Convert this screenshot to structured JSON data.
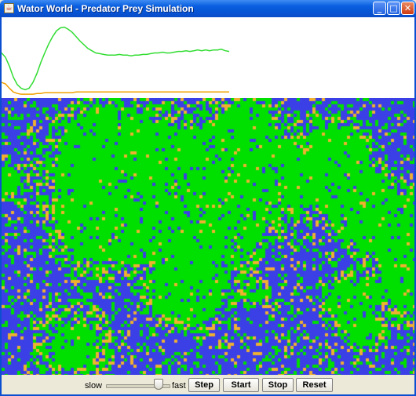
{
  "window": {
    "title": "Wator World - Predator Prey Simulation",
    "controls": {
      "minimize": "_",
      "maximize": "□",
      "close": "✕"
    }
  },
  "colors": {
    "water": "#3b3fe6",
    "fish": "#00e000",
    "shark": "#f0b030",
    "fish_line": "#33dd33",
    "shark_line": "#f0a000",
    "titlebar": "#0754d6"
  },
  "graph": {
    "series": [
      {
        "color_key": "fish",
        "values": [
          0.58,
          0.52,
          0.4,
          0.25,
          0.15,
          0.1,
          0.08,
          0.1,
          0.18,
          0.3,
          0.45,
          0.58,
          0.7,
          0.8,
          0.88,
          0.92,
          0.93,
          0.9,
          0.86,
          0.8,
          0.74,
          0.69,
          0.64,
          0.61,
          0.58,
          0.57,
          0.56,
          0.55,
          0.55,
          0.55,
          0.56,
          0.55,
          0.55,
          0.54,
          0.55,
          0.55,
          0.56,
          0.56,
          0.57,
          0.58,
          0.58,
          0.59,
          0.58,
          0.58,
          0.59,
          0.6,
          0.6,
          0.61,
          0.6,
          0.61,
          0.62,
          0.61,
          0.62,
          0.61,
          0.62,
          0.62,
          0.63,
          0.61,
          0.6
        ]
      },
      {
        "color_key": "shark",
        "values": [
          0.18,
          0.16,
          0.1,
          0.05,
          0.03,
          0.02,
          0.02,
          0.02,
          0.02,
          0.03,
          0.03,
          0.04,
          0.04,
          0.04,
          0.04,
          0.04,
          0.04,
          0.04,
          0.04,
          0.05,
          0.05,
          0.05,
          0.05,
          0.05,
          0.05,
          0.05,
          0.05,
          0.05,
          0.05,
          0.05,
          0.05,
          0.05,
          0.05,
          0.05,
          0.05,
          0.05,
          0.05,
          0.05,
          0.05,
          0.05,
          0.05,
          0.05,
          0.05,
          0.05,
          0.05,
          0.05,
          0.05,
          0.05,
          0.05,
          0.05,
          0.05,
          0.05,
          0.05,
          0.05,
          0.05,
          0.05,
          0.05,
          0.05,
          0.05
        ]
      }
    ]
  },
  "controls": {
    "speed_label_slow": "slow",
    "speed_label_fast": "fast",
    "speed_value": 0.9,
    "step_label": "Step",
    "start_label": "Start",
    "stop_label": "Stop",
    "reset_label": "Reset"
  }
}
